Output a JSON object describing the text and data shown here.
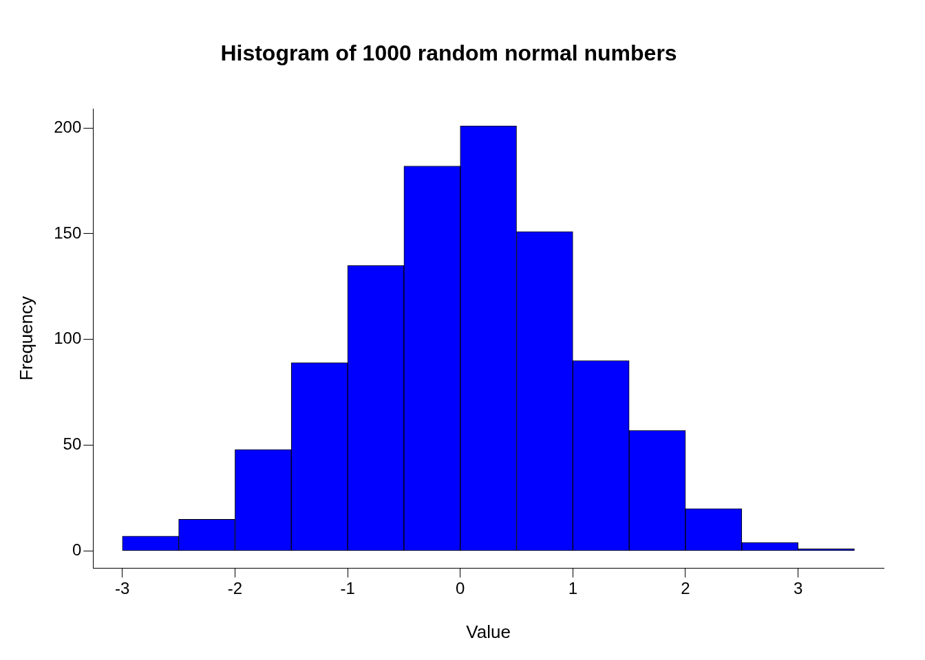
{
  "chart_data": {
    "type": "histogram",
    "title": "Histogram of 1000 random normal numbers",
    "xlabel": "Value",
    "ylabel": "Frequency",
    "bins": [
      -3,
      -2.5,
      -2,
      -1.5,
      -1,
      -0.5,
      0,
      0.5,
      1,
      1.5,
      2,
      2.5,
      3,
      3.5
    ],
    "values": [
      7,
      15,
      48,
      89,
      135,
      182,
      201,
      151,
      90,
      57,
      20,
      4,
      1
    ],
    "color": "#0000ff",
    "xlim": [
      -3.26,
      3.76
    ],
    "xticks": [
      -3,
      -2,
      -1,
      0,
      1,
      2,
      3
    ],
    "ylim": [
      -8,
      209
    ],
    "yticks": [
      0,
      50,
      100,
      150,
      200
    ],
    "grid": false,
    "legend": false
  }
}
